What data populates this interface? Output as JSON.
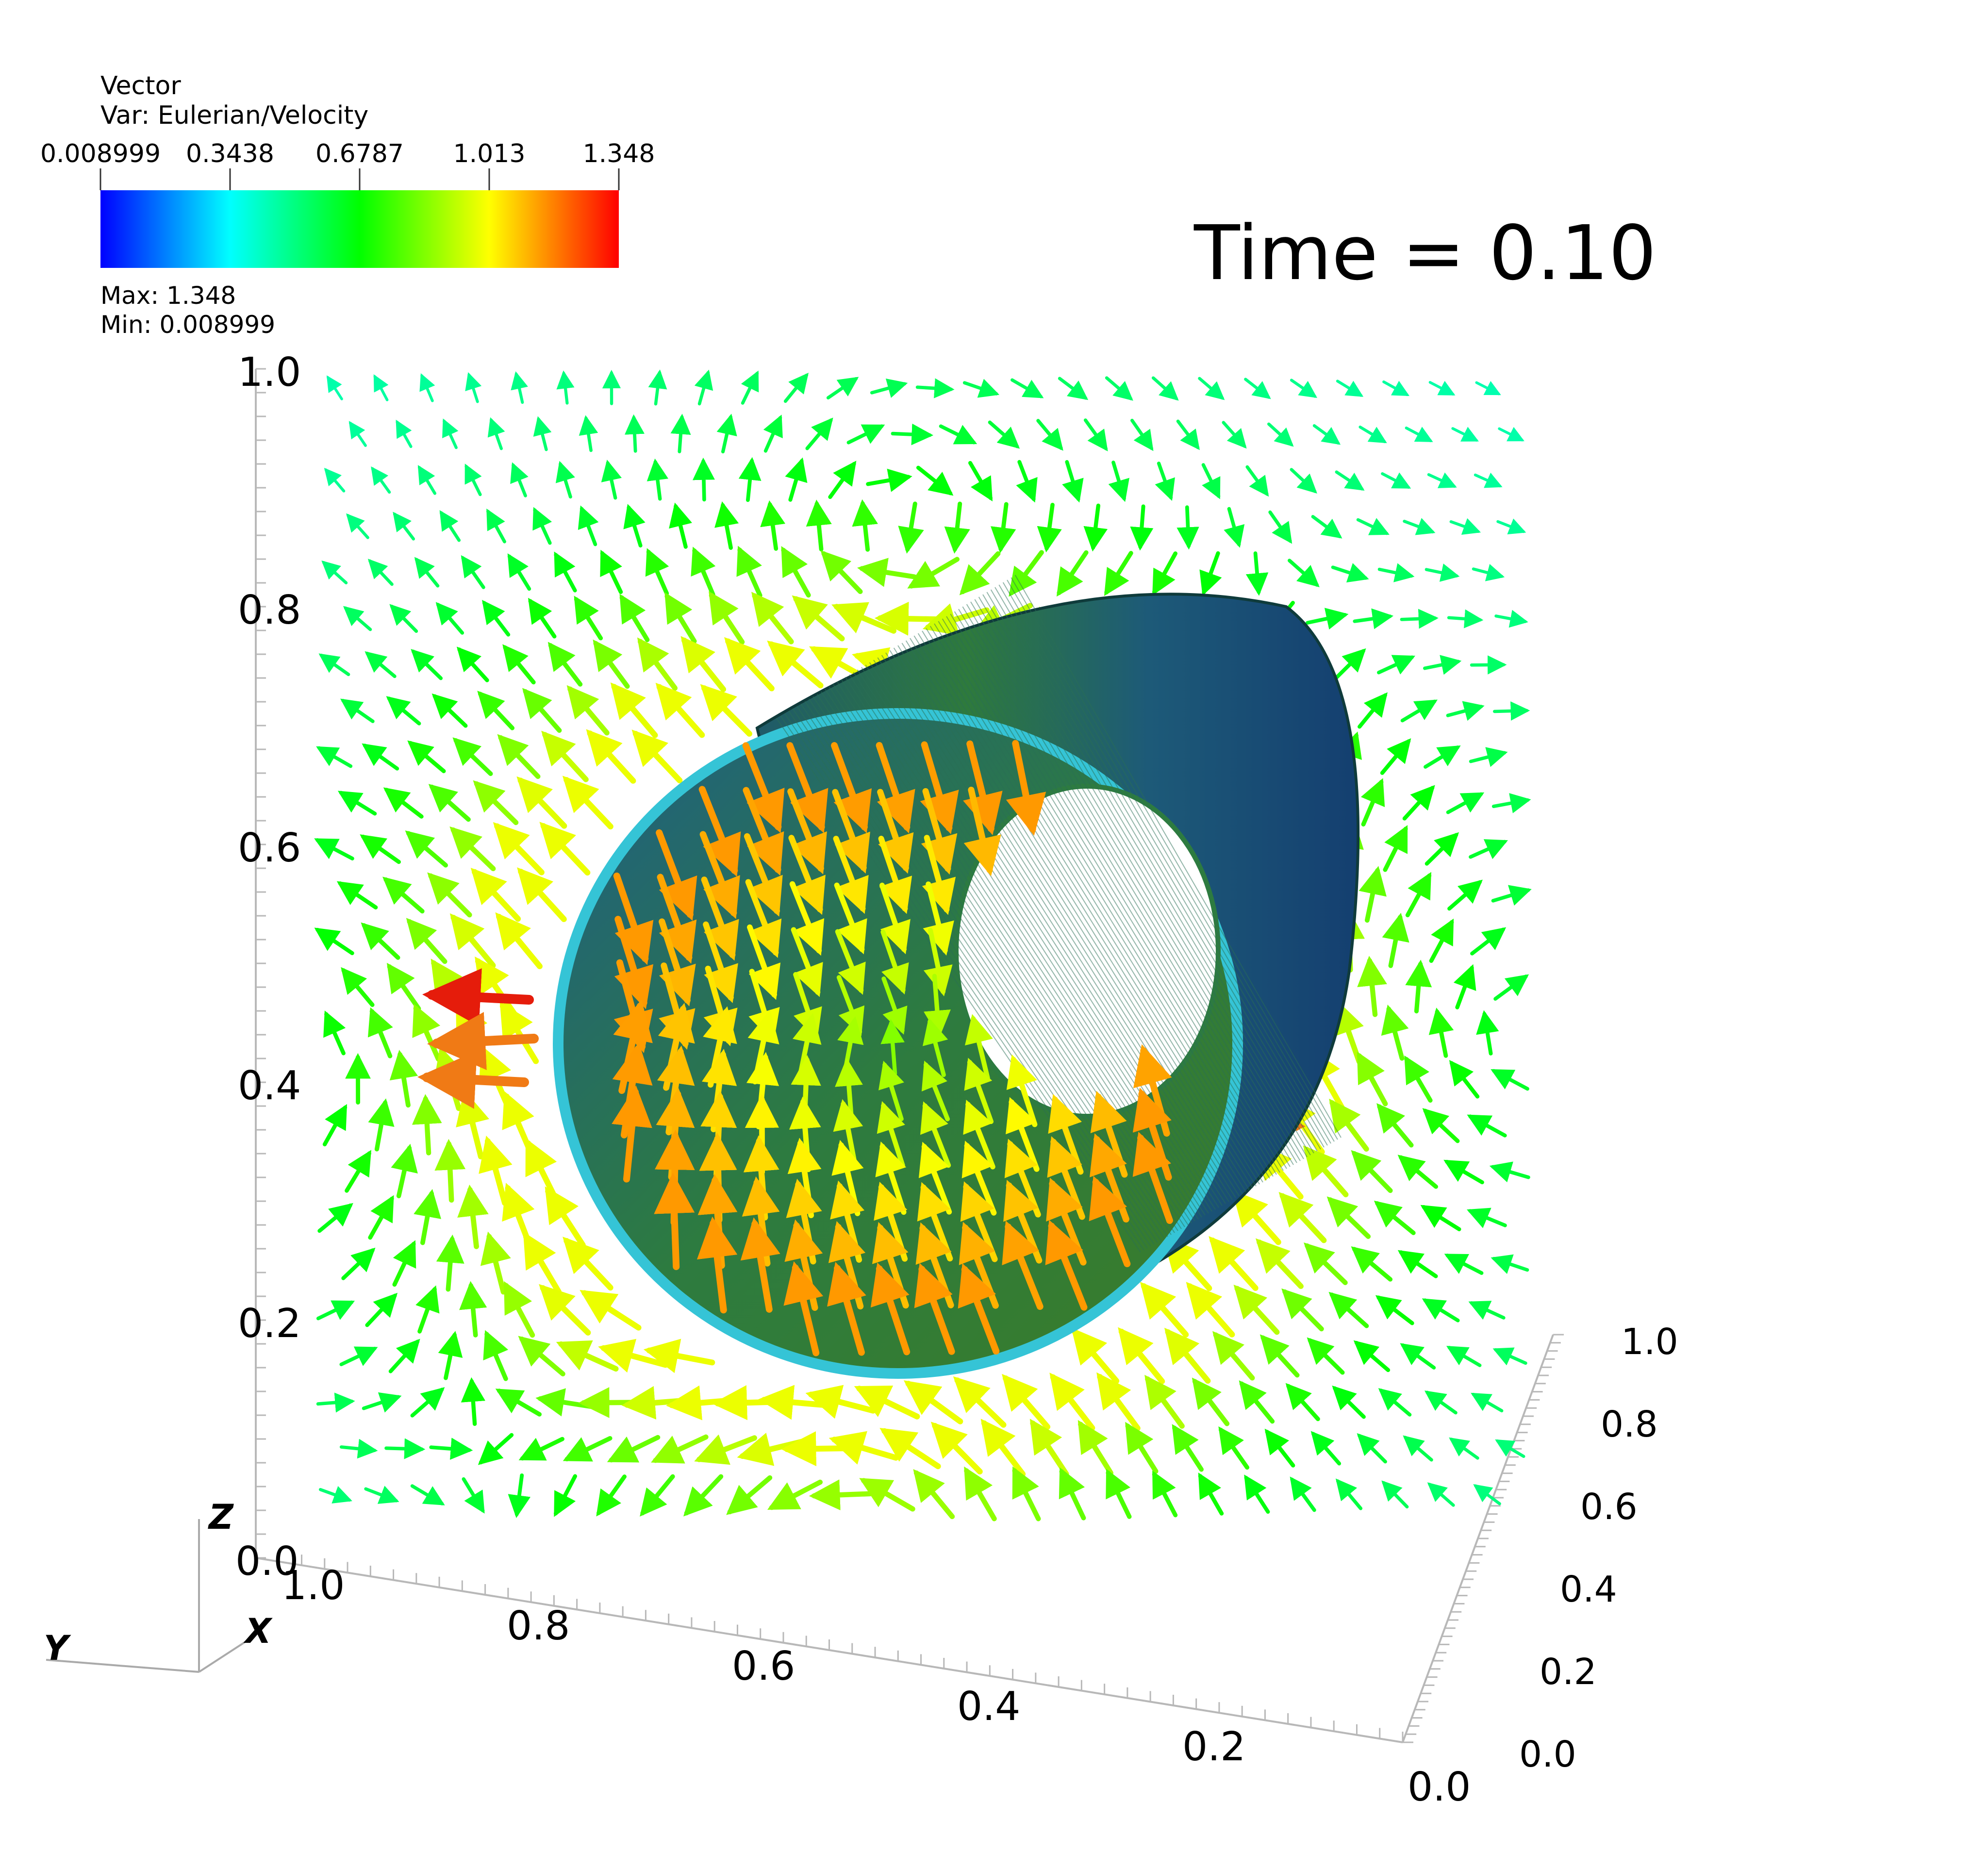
{
  "chart_data": {
    "type": "vector-field-3d",
    "title": "Time = 0.10",
    "legend": {
      "title": "Vector",
      "subtitle": "Var: Eulerian/Velocity",
      "ticks": [
        "0.008999",
        "0.3438",
        "0.6787",
        "1.013",
        "1.348"
      ],
      "max_label": "Max:  1.348",
      "min_label": "Min:  0.008999",
      "colormap": [
        "#0000ff",
        "#00ffff",
        "#00ff00",
        "#ffff00",
        "#ff0000"
      ]
    },
    "color_range": [
      0.008999,
      1.348
    ],
    "axes": {
      "x": {
        "label": "X",
        "ticks": [
          "1.0",
          "0.8",
          "0.6",
          "0.4",
          "0.2",
          "0.0"
        ],
        "range": [
          0,
          1
        ]
      },
      "y": {
        "label": "Y",
        "ticks": [
          "0.0",
          "0.2",
          "0.4",
          "0.6",
          "0.8",
          "1.0"
        ],
        "range": [
          0,
          1
        ]
      },
      "z": {
        "label": "Z",
        "ticks": [
          "0.0",
          "0.2",
          "0.4",
          "0.6",
          "0.8",
          "1.0"
        ],
        "range": [
          0,
          1
        ]
      }
    },
    "field": {
      "description": "velocity arrows around a cylindrical shell, strongest at left and right openings",
      "cylinder_axis_center": [
        0.5,
        0.5
      ]
    }
  }
}
